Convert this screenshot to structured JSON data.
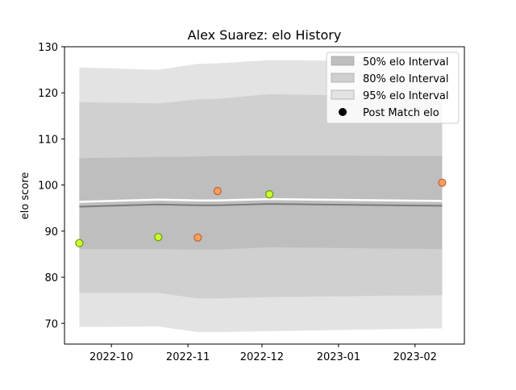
{
  "chart_data": {
    "type": "line",
    "title": "Alex Suarez: elo History",
    "xlabel": "",
    "ylabel": "elo score",
    "x_axis": {
      "type": "date",
      "range": [
        "2022-09-12",
        "2023-02-21"
      ],
      "ticks": [
        "2022-10-01",
        "2022-11-01",
        "2022-12-01",
        "2023-01-01",
        "2023-02-01"
      ],
      "tick_labels": [
        "2022-10",
        "2022-11",
        "2022-12",
        "2023-01",
        "2023-02"
      ]
    },
    "y_axis": {
      "range": [
        65.5,
        130
      ],
      "ticks": [
        70,
        80,
        90,
        100,
        110,
        120,
        130
      ]
    },
    "grid": false,
    "legend_position": "top-right",
    "x": [
      "2022-09-18",
      "2022-10-20",
      "2022-11-05",
      "2022-11-13",
      "2022-12-04",
      "2023-02-12"
    ],
    "intervals": [
      {
        "name": "95% elo Interval",
        "color": "#e3e3e3",
        "upper": [
          125.5,
          125.0,
          126.3,
          126.4,
          127.1,
          126.8
        ],
        "lower": [
          69.2,
          69.3,
          68.1,
          68.1,
          68.3,
          68.9
        ]
      },
      {
        "name": "80% elo Interval",
        "color": "#d0d0d0",
        "upper": [
          118.0,
          117.7,
          118.6,
          118.7,
          119.7,
          119.0
        ],
        "lower": [
          76.6,
          76.6,
          75.4,
          75.4,
          75.7,
          76.1
        ]
      },
      {
        "name": "50% elo Interval",
        "color": "#bebebe",
        "upper": [
          105.8,
          106.1,
          106.2,
          106.3,
          106.4,
          106.3
        ],
        "lower": [
          86.1,
          86.1,
          86.0,
          86.0,
          86.5,
          86.1
        ]
      }
    ],
    "mean_line": [
      95.3,
      95.8,
      95.6,
      95.6,
      95.9,
      95.5
    ],
    "points": {
      "name": "Post Match elo",
      "x": [
        "2022-09-18",
        "2022-10-20",
        "2022-11-05",
        "2022-11-13",
        "2022-12-04",
        "2023-02-12"
      ],
      "y": [
        87.4,
        88.7,
        88.6,
        98.7,
        98.0,
        100.5
      ],
      "outcomes": [
        "win",
        "win",
        "loss",
        "loss",
        "win",
        "loss"
      ]
    },
    "colors": {
      "win_fill": "#ccff33",
      "win_edge": "#669900",
      "loss_fill": "#f5a05a",
      "loss_edge": "#c0603a",
      "mean_line": "#7a7a7a",
      "white_line": "#ffffff"
    }
  }
}
